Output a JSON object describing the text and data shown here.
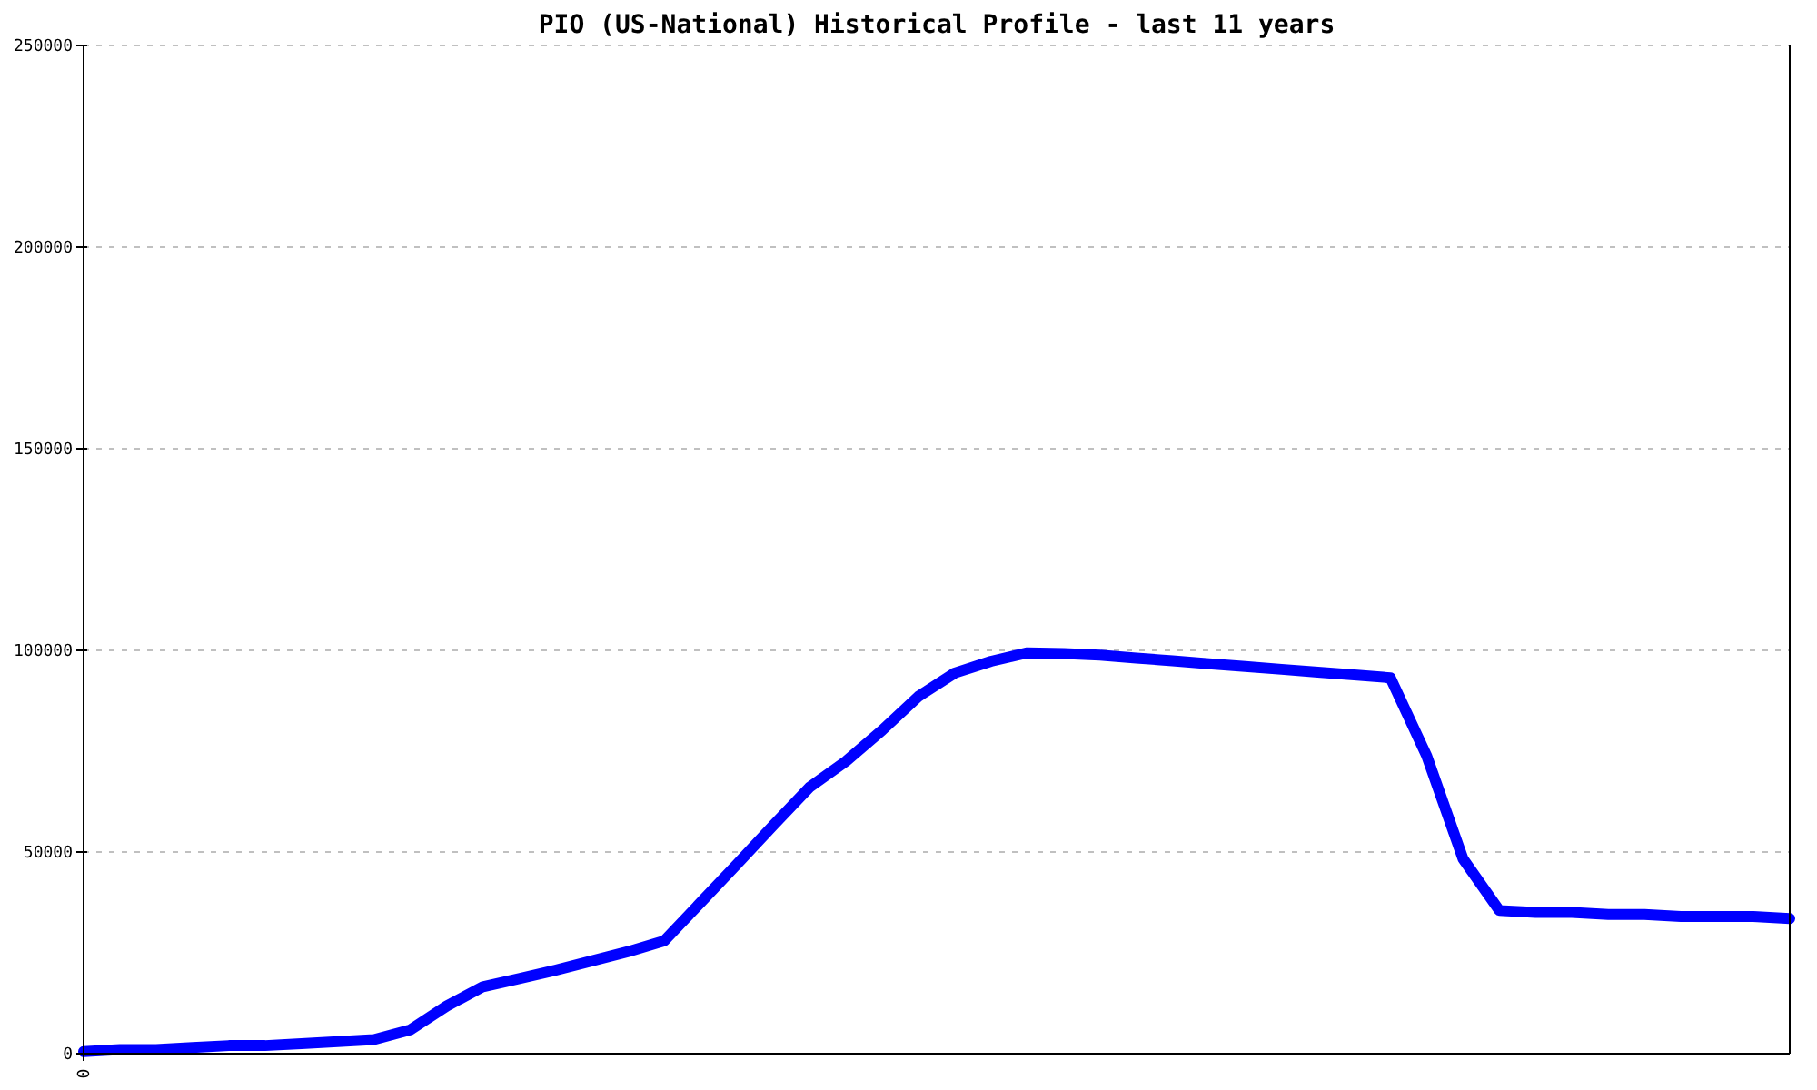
{
  "chart_data": {
    "type": "line",
    "title": "PIO (US-National) Historical Profile - last 11 years",
    "categories": [
      "0",
      null,
      null,
      null,
      null,
      null,
      null,
      null,
      null,
      null,
      null,
      null,
      null,
      null,
      null,
      null,
      null,
      null,
      null,
      null,
      null,
      null,
      null,
      null,
      null,
      null,
      null,
      null,
      null,
      null,
      null,
      null,
      null,
      null,
      null,
      null,
      null,
      null,
      null,
      null,
      null,
      null,
      null,
      null,
      null,
      null,
      null,
      null
    ],
    "series": [
      {
        "color": "#0000ff",
        "values": [
          500,
          1000,
          1000,
          1500,
          2000,
          2000,
          2500,
          3000,
          3500,
          5900,
          11800,
          16600,
          18600,
          20700,
          23000,
          25300,
          28000,
          37500,
          47000,
          56600,
          66100,
          72500,
          80200,
          88600,
          94400,
          97300,
          99400,
          99200,
          98800,
          98100,
          97400,
          96700,
          96000,
          95300,
          94600,
          93900,
          93200,
          73800,
          48300,
          35500,
          35000,
          35000,
          34500,
          34500,
          34000,
          34000,
          34000,
          33500
        ]
      }
    ],
    "ylim": [
      0,
      250000
    ],
    "yticks": [
      0,
      50000,
      100000,
      150000,
      200000,
      250000
    ],
    "grid": "y",
    "marker": "none",
    "line_style": "solid"
  }
}
